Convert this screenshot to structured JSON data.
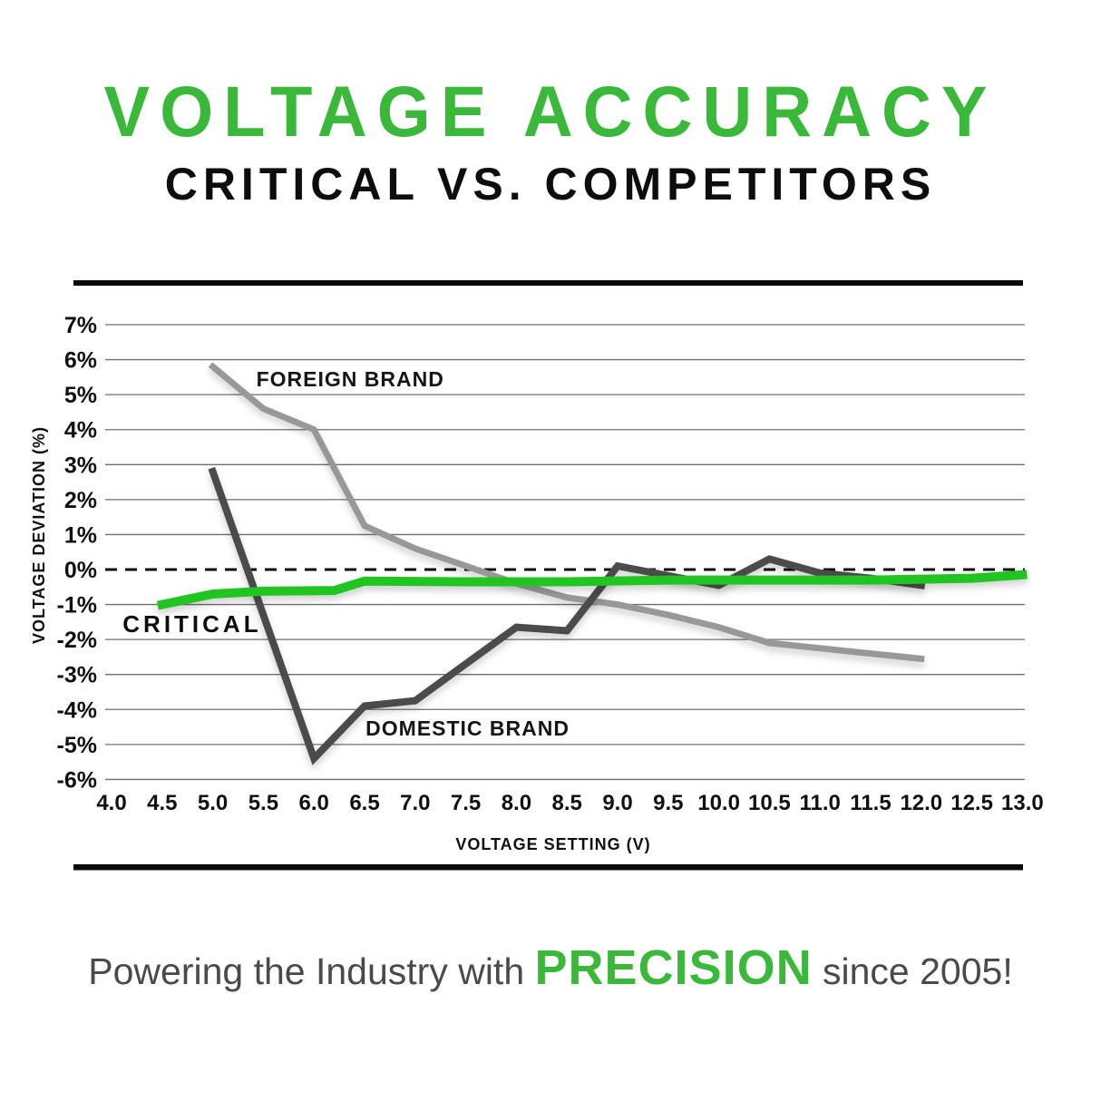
{
  "page": {
    "title_line1": "VOLTAGE ACCURACY",
    "title_line2": "CRITICAL VS. COMPETITORS",
    "footer": {
      "prefix": "Powering the Industry with",
      "highlight": "PRECISION",
      "suffix": "since 2005!"
    }
  },
  "colors": {
    "brand_green": "#3ab83a",
    "line_green": "#24c424",
    "foreign_gray": "#989898",
    "domestic_dark": "#4b4b4b",
    "text_dark": "#101010"
  },
  "chart_data": {
    "type": "line",
    "title": "",
    "xlabel": "VOLTAGE SETTING (V)",
    "ylabel": "VOLTAGE DEVIATION (%)",
    "xlim": [
      4.0,
      13.0
    ],
    "ylim": [
      -6,
      7
    ],
    "grid": "horizontal",
    "zero_line_style": "dashed",
    "legend_position": "inline-labels",
    "x_ticks": [
      "4.0",
      "4.5",
      "5.0",
      "5.5",
      "6.0",
      "6.5",
      "7.0",
      "7.5",
      "8.0",
      "8.5",
      "9.0",
      "9.5",
      "10.0",
      "10.5",
      "11.0",
      "11.5",
      "12.0",
      "12.5",
      "13.0"
    ],
    "y_ticks": [
      {
        "value": 7,
        "label": "7%"
      },
      {
        "value": 6,
        "label": "6%"
      },
      {
        "value": 5,
        "label": "5%"
      },
      {
        "value": 4,
        "label": "4%"
      },
      {
        "value": 3,
        "label": "3%"
      },
      {
        "value": 2,
        "label": "2%"
      },
      {
        "value": 1,
        "label": "1%"
      },
      {
        "value": 0,
        "label": "0%"
      },
      {
        "value": -1,
        "label": "-1%"
      },
      {
        "value": -2,
        "label": "-2%"
      },
      {
        "value": -3,
        "label": "-3%"
      },
      {
        "value": -4,
        "label": "-4%"
      },
      {
        "value": -5,
        "label": "-5%"
      },
      {
        "value": -6,
        "label": "-6%"
      }
    ],
    "series": [
      {
        "name": "FOREIGN BRAND",
        "color": "#989898",
        "stroke_width": 7,
        "points": [
          [
            5.0,
            5.8
          ],
          [
            5.5,
            4.6
          ],
          [
            6.0,
            4.0
          ],
          [
            6.5,
            1.25
          ],
          [
            7.0,
            0.6
          ],
          [
            7.5,
            0.1
          ],
          [
            8.0,
            -0.4
          ],
          [
            8.5,
            -0.8
          ],
          [
            9.0,
            -1.0
          ],
          [
            9.5,
            -1.3
          ],
          [
            10.0,
            -1.65
          ],
          [
            10.5,
            -2.1
          ],
          [
            11.0,
            -2.25
          ],
          [
            11.5,
            -2.4
          ],
          [
            12.0,
            -2.55
          ]
        ]
      },
      {
        "name": "DOMESTIC BRAND",
        "color": "#4b4b4b",
        "stroke_width": 8,
        "points": [
          [
            5.0,
            2.8
          ],
          [
            6.0,
            -5.4
          ],
          [
            6.5,
            -3.9
          ],
          [
            7.0,
            -3.75
          ],
          [
            8.0,
            -1.65
          ],
          [
            8.5,
            -1.75
          ],
          [
            9.0,
            0.1
          ],
          [
            10.0,
            -0.45
          ],
          [
            10.5,
            0.3
          ],
          [
            11.0,
            -0.1
          ],
          [
            11.5,
            -0.25
          ],
          [
            12.0,
            -0.45
          ]
        ]
      },
      {
        "name": "CRITICAL",
        "color": "#24c424",
        "stroke_width": 10,
        "points": [
          [
            4.5,
            -1.0
          ],
          [
            5.0,
            -0.7
          ],
          [
            5.5,
            -0.62
          ],
          [
            6.2,
            -0.6
          ],
          [
            6.5,
            -0.33
          ],
          [
            7.5,
            -0.35
          ],
          [
            8.5,
            -0.35
          ],
          [
            9.5,
            -0.3
          ],
          [
            10.5,
            -0.3
          ],
          [
            11.5,
            -0.3
          ],
          [
            12.5,
            -0.25
          ],
          [
            13.0,
            -0.15
          ]
        ]
      }
    ],
    "labels": [
      {
        "text": "FOREIGN BRAND",
        "x": 5.43,
        "y": 5.44,
        "style": "plain"
      },
      {
        "text": "DOMESTIC BRAND",
        "x": 6.51,
        "y": -4.54,
        "style": "plain"
      },
      {
        "text": "CRITICAL",
        "x": 4.11,
        "y": -1.58,
        "style": "brand"
      }
    ]
  }
}
